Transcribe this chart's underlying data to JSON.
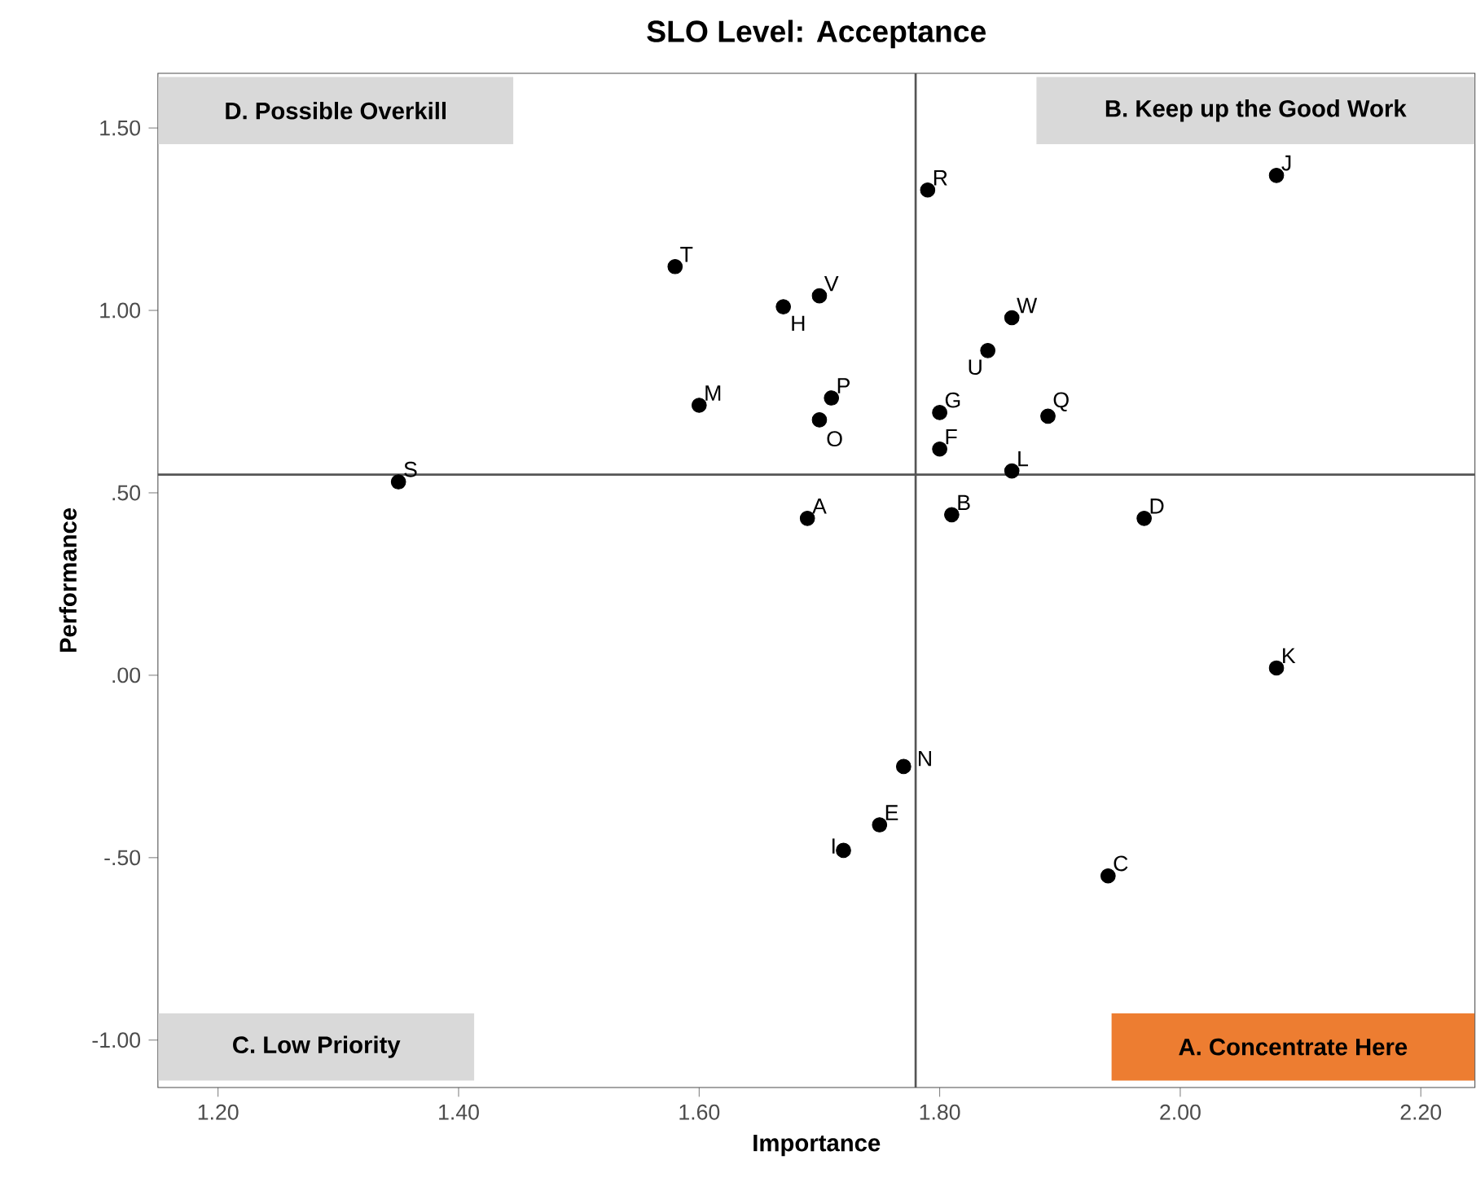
{
  "chart_data": {
    "type": "scatter",
    "title": "SLO Level: Acceptance",
    "xlabel": "Importance",
    "ylabel": "Performance",
    "xlim": [
      1.15,
      2.245
    ],
    "ylim": [
      -1.13,
      1.65
    ],
    "xticks": [
      {
        "value": 1.2,
        "label": "1.20"
      },
      {
        "value": 1.4,
        "label": "1.40"
      },
      {
        "value": 1.6,
        "label": "1.60"
      },
      {
        "value": 1.8,
        "label": "1.80"
      },
      {
        "value": 2.0,
        "label": "2.00"
      },
      {
        "value": 2.2,
        "label": "2.20"
      }
    ],
    "yticks": [
      {
        "value": -1.0,
        "label": "-1.00"
      },
      {
        "value": -0.5,
        "label": "-.50"
      },
      {
        "value": 0.0,
        "label": ".00"
      },
      {
        "value": 0.5,
        "label": ".50"
      },
      {
        "value": 1.0,
        "label": "1.00"
      },
      {
        "value": 1.5,
        "label": "1.50"
      }
    ],
    "marker": "circle",
    "grid": false,
    "series": [
      {
        "color": "#000000",
        "x": [
          1.79,
          2.08,
          1.58,
          1.67,
          1.7,
          1.86,
          1.84,
          1.6,
          1.71,
          1.7,
          1.8,
          1.89,
          1.8,
          1.86,
          1.35,
          1.69,
          1.81,
          1.97,
          2.08,
          1.77,
          1.75,
          1.72,
          1.94
        ],
        "values": [
          1.33,
          1.37,
          1.12,
          1.01,
          1.04,
          0.98,
          0.89,
          0.74,
          0.76,
          0.7,
          0.72,
          0.71,
          0.62,
          0.56,
          0.53,
          0.43,
          0.44,
          0.43,
          0.02,
          -0.25,
          -0.41,
          -0.48,
          -0.55
        ],
        "value_labels": [
          "R",
          "J",
          "T",
          "H",
          "V",
          "W",
          "U",
          "M",
          "P",
          "O",
          "G",
          "Q",
          "F",
          "L",
          "S",
          "A",
          "B",
          "D",
          "K",
          "N",
          "E",
          "I",
          "C"
        ]
      }
    ],
    "ref_lines": [
      {
        "axis": "x",
        "value": 1.78,
        "color": "#555555"
      },
      {
        "axis": "y",
        "value": 0.55,
        "color": "#555555"
      }
    ],
    "annotations": [
      "D. Possible Overkill",
      "B. Keep up the Good Work",
      "C. Low Priority",
      "A. Concentrate Here"
    ]
  }
}
